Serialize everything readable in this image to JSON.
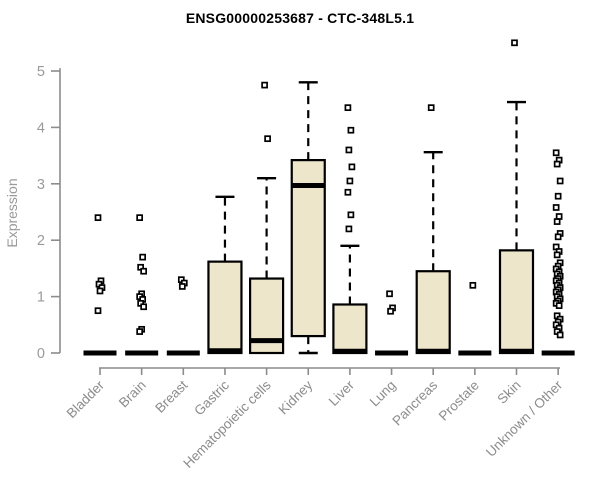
{
  "title": "ENSG00000253687 - CTC-348L5.1",
  "chart_data": {
    "type": "boxplot",
    "title": "ENSG00000253687 - CTC-348L5.1",
    "xlabel": "",
    "ylabel": "Expression",
    "ylim": [
      0,
      5.6
    ],
    "yticks": [
      0,
      1,
      2,
      3,
      4,
      5
    ],
    "grid": false,
    "legend": "none",
    "colors": {
      "box_fill": "#EDE6CB",
      "box_stroke": "#000000",
      "axis": "#8c8c8c",
      "tick_text": "#9a9a9a",
      "title_text": "#000000"
    },
    "categories": [
      "Bladder",
      "Brain",
      "Breast",
      "Gastric",
      "Hematopoietic cells",
      "Kidney",
      "Liver",
      "Lung",
      "Pancreas",
      "Prostate",
      "Skin",
      "Unknown / Other"
    ],
    "series": [
      {
        "name": "Bladder",
        "whisker_low": 0,
        "q1": 0,
        "median": 0,
        "q3": 0,
        "whisker_high": 0,
        "outliers": [
          2.4,
          1.28,
          1.22,
          1.16,
          1.1,
          0.75
        ]
      },
      {
        "name": "Brain",
        "whisker_low": 0,
        "q1": 0,
        "median": 0,
        "q3": 0,
        "whisker_high": 0,
        "outliers": [
          2.4,
          1.7,
          1.52,
          1.45,
          1.05,
          1.0,
          0.95,
          0.88,
          0.82,
          0.42,
          0.38
        ]
      },
      {
        "name": "Breast",
        "whisker_low": 0,
        "q1": 0,
        "median": 0,
        "q3": 0,
        "whisker_high": 0,
        "outliers": [
          1.3,
          1.24,
          1.18
        ]
      },
      {
        "name": "Gastric",
        "whisker_low": 0,
        "q1": 0,
        "median": 0.04,
        "q3": 1.62,
        "whisker_high": 2.77,
        "outliers": []
      },
      {
        "name": "Hematopoietic cells",
        "whisker_low": 0,
        "q1": 0,
        "median": 0.22,
        "q3": 1.32,
        "whisker_high": 3.1,
        "outliers": [
          4.75,
          3.8
        ]
      },
      {
        "name": "Kidney",
        "whisker_low": 0,
        "q1": 0.3,
        "median": 2.97,
        "q3": 3.42,
        "whisker_high": 4.8,
        "outliers": []
      },
      {
        "name": "Liver",
        "whisker_low": 0,
        "q1": 0,
        "median": 0.03,
        "q3": 0.86,
        "whisker_high": 1.9,
        "outliers": [
          4.35,
          3.95,
          3.6,
          3.3,
          3.05,
          2.85,
          2.45,
          2.2
        ]
      },
      {
        "name": "Lung",
        "whisker_low": 0,
        "q1": 0,
        "median": 0,
        "q3": 0,
        "whisker_high": 0,
        "outliers": [
          1.05,
          0.8,
          0.74
        ]
      },
      {
        "name": "Pancreas",
        "whisker_low": 0,
        "q1": 0,
        "median": 0.03,
        "q3": 1.45,
        "whisker_high": 3.56,
        "outliers": [
          4.35
        ]
      },
      {
        "name": "Prostate",
        "whisker_low": 0,
        "q1": 0,
        "median": 0,
        "q3": 0,
        "whisker_high": 0,
        "outliers": [
          1.2
        ]
      },
      {
        "name": "Skin",
        "whisker_low": 0,
        "q1": 0,
        "median": 0.03,
        "q3": 1.82,
        "whisker_high": 4.45,
        "outliers": [
          5.5
        ]
      },
      {
        "name": "Unknown / Other",
        "whisker_low": 0,
        "q1": 0,
        "median": 0,
        "q3": 0,
        "whisker_high": 0,
        "outliers": [
          3.55,
          3.42,
          3.35,
          3.05,
          2.78,
          2.58,
          2.42,
          2.33,
          2.12,
          2.06,
          1.88,
          1.8,
          1.74,
          1.6,
          1.54,
          1.49,
          1.44,
          1.4,
          1.36,
          1.32,
          1.28,
          1.24,
          1.2,
          1.16,
          1.12,
          1.08,
          1.04,
          1.0,
          0.96,
          0.92,
          0.88,
          0.84,
          0.66,
          0.6,
          0.55,
          0.5,
          0.44,
          0.38,
          0.32
        ]
      }
    ]
  }
}
